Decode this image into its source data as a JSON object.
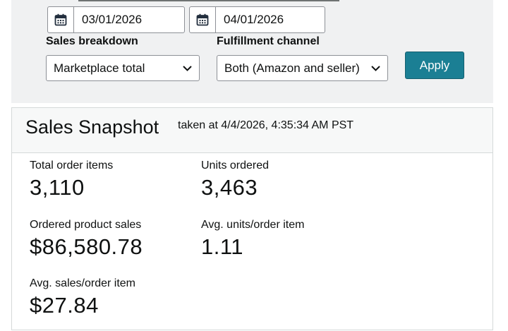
{
  "filters": {
    "start_date": "03/01/2026",
    "end_date": "04/01/2026",
    "sales_breakdown": {
      "label": "Sales breakdown",
      "selected": "Marketplace total"
    },
    "fulfillment_channel": {
      "label": "Fulfillment channel",
      "selected": "Both (Amazon and seller)"
    },
    "apply_label": "Apply",
    "accent_color": "#1b7f94"
  },
  "snapshot": {
    "title": "Sales Snapshot",
    "taken_at": "taken at 4/4/2026, 4:35:34 AM PST",
    "metrics": [
      {
        "label": "Total order items",
        "value": "3,110"
      },
      {
        "label": "Units ordered",
        "value": "3,463"
      },
      {
        "label": "Ordered product sales",
        "value": "$86,580.78"
      },
      {
        "label": "Avg. units/order item",
        "value": "1.11"
      },
      {
        "label": "Avg. sales/order item",
        "value": "$27.84"
      }
    ]
  },
  "icons": {
    "date": "calendar-icon",
    "select": "chevron-down-icon"
  }
}
